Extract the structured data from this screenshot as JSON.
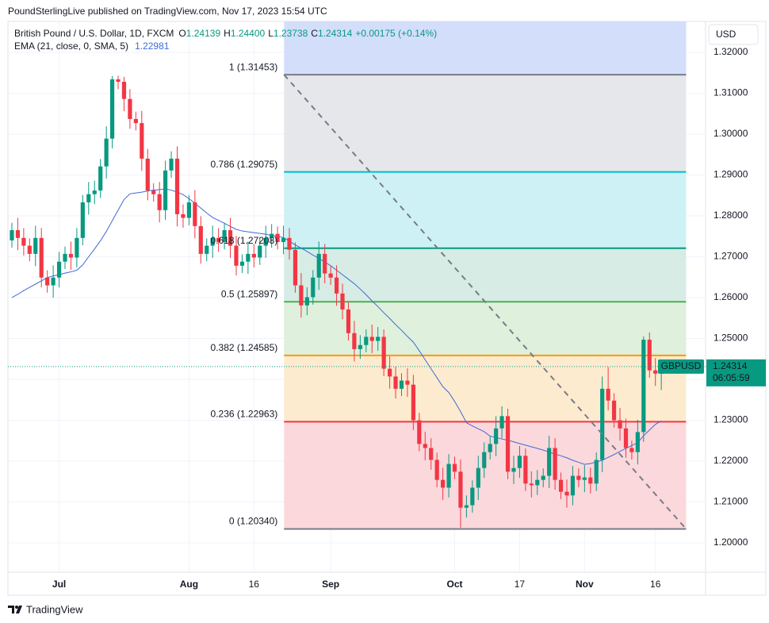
{
  "header": {
    "publisher": "PoundSterlingLive published on TradingView.com, Nov 17, 2023 15:54 UTC"
  },
  "footer": {
    "brand": "TradingView"
  },
  "chart_data": {
    "type": "candlestick",
    "symbol": "British Pound / U.S. Dollar, 1D, FXCM",
    "ohlc_names": [
      "O",
      "H",
      "L",
      "C"
    ],
    "ohlc_labels": [
      "1.24139",
      "1.24400",
      "1.23738",
      "1.24314"
    ],
    "change_label": "+0.00175 (+0.14%)",
    "currency": "USD",
    "ticker": "GBPUSD",
    "countdown": "06:05:59",
    "up_color": "#089981",
    "down_color": "#f23645",
    "open": [
      1.274,
      1.2765,
      1.2746,
      1.2727,
      1.2707,
      1.2746,
      1.2649,
      1.263,
      1.2649,
      1.2688,
      1.2707,
      1.2698,
      1.2746,
      1.2833,
      1.2853,
      1.2862,
      1.2921,
      1.2989,
      1.3134,
      1.3128,
      1.3086,
      1.3037,
      1.3027,
      1.294,
      1.2862,
      1.2853,
      1.2814,
      1.2911,
      1.294,
      1.2804,
      1.2795,
      1.2833,
      1.2775,
      1.2707,
      1.2727,
      1.2746,
      1.2736,
      1.2765,
      1.2727,
      1.2678,
      1.2688,
      1.2707,
      1.2698,
      1.2727,
      1.2746,
      1.2756,
      1.2736,
      1.2746,
      1.2717,
      1.263,
      1.2581,
      1.2601,
      1.2649,
      1.2707,
      1.2659,
      1.2649,
      1.261,
      1.2571,
      1.2513,
      1.2474,
      1.2484,
      1.2504,
      1.2494,
      1.2504,
      1.2426,
      1.2407,
      1.2377,
      1.2397,
      1.2387,
      1.23,
      1.2242,
      1.2232,
      1.2203,
      1.2154,
      1.2135,
      1.2193,
      1.2174,
      1.2086,
      1.2092,
      1.2135,
      1.2183,
      1.2222,
      1.2242,
      1.228,
      1.231,
      1.2174,
      1.2183,
      1.2213,
      1.2145,
      1.2141,
      1.2154,
      1.2164,
      1.2232,
      1.2154,
      1.2125,
      1.2116,
      1.2164,
      1.2154,
      1.216,
      1.2145,
      1.2203,
      1.2377,
      1.2348,
      1.23,
      1.228,
      1.2232,
      1.2222,
      1.2271,
      1.2497,
      1.2422,
      1.24139
    ],
    "high": [
      1.2783,
      1.2795,
      1.277,
      1.2745,
      1.2776,
      1.277,
      1.2667,
      1.2679,
      1.2712,
      1.2725,
      1.2737,
      1.277,
      1.2851,
      1.2883,
      1.2886,
      1.2939,
      1.3019,
      1.3142,
      1.3143,
      1.314,
      1.311,
      1.3055,
      1.3057,
      1.2964,
      1.288,
      1.2883,
      1.2935,
      1.2958,
      1.297,
      1.2828,
      1.2851,
      1.2863,
      1.2799,
      1.2745,
      1.2776,
      1.277,
      1.2783,
      1.2795,
      1.2751,
      1.2706,
      1.2737,
      1.2731,
      1.2745,
      1.2776,
      1.278,
      1.2774,
      1.2776,
      1.277,
      1.2735,
      1.266,
      1.2625,
      1.2667,
      1.2737,
      1.2731,
      1.2677,
      1.2679,
      1.2634,
      1.2589,
      1.2543,
      1.2508,
      1.2522,
      1.2534,
      1.2528,
      1.2522,
      1.2456,
      1.2431,
      1.2415,
      1.2427,
      1.2411,
      1.2318,
      1.2272,
      1.2256,
      1.2221,
      1.2184,
      1.2217,
      1.2211,
      1.2204,
      1.2116,
      1.2153,
      1.2213,
      1.2246,
      1.226,
      1.231,
      1.2334,
      1.2328,
      1.2213,
      1.2237,
      1.2231,
      1.2175,
      1.2178,
      1.2182,
      1.2262,
      1.2256,
      1.2172,
      1.2155,
      1.2188,
      1.2182,
      1.219,
      1.2184,
      1.2221,
      1.2407,
      1.243,
      1.2366,
      1.233,
      1.2304,
      1.225,
      1.2301,
      1.2505,
      1.2515,
      1.2452,
      1.244
    ],
    "low": [
      1.2722,
      1.2716,
      1.2703,
      1.2689,
      1.2677,
      1.2625,
      1.2612,
      1.26,
      1.2625,
      1.267,
      1.2668,
      1.2674,
      1.2728,
      1.2803,
      1.2829,
      1.2844,
      1.2891,
      1.2965,
      1.311,
      1.3056,
      1.3013,
      1.3009,
      1.291,
      1.2838,
      1.2835,
      1.2784,
      1.279,
      1.2893,
      1.2774,
      1.2771,
      1.2777,
      1.2745,
      1.2683,
      1.2689,
      1.2697,
      1.2712,
      1.2718,
      1.2697,
      1.2654,
      1.266,
      1.2658,
      1.2674,
      1.268,
      1.2697,
      1.2722,
      1.2718,
      1.2706,
      1.2693,
      1.2612,
      1.2551,
      1.2557,
      1.2583,
      1.2619,
      1.2635,
      1.2631,
      1.258,
      1.2547,
      1.2495,
      1.2444,
      1.245,
      1.2466,
      1.2464,
      1.247,
      1.2408,
      1.2377,
      1.2353,
      1.2359,
      1.2357,
      1.2276,
      1.2224,
      1.2202,
      1.2179,
      1.2136,
      1.2105,
      1.2111,
      1.2156,
      1.2037,
      1.2062,
      1.2074,
      1.2105,
      1.2159,
      1.2204,
      1.2212,
      1.2256,
      1.2156,
      1.2144,
      1.2159,
      1.2127,
      1.2111,
      1.2117,
      1.2136,
      1.2134,
      1.213,
      1.2107,
      1.2086,
      1.2092,
      1.2136,
      1.2124,
      1.2121,
      1.2127,
      1.2173,
      1.2324,
      1.2282,
      1.225,
      1.2208,
      1.2204,
      1.2192,
      1.2247,
      1.2404,
      1.2384,
      1.23738
    ],
    "close": [
      1.2765,
      1.2746,
      1.2727,
      1.2707,
      1.2746,
      1.2649,
      1.263,
      1.2649,
      1.2688,
      1.2707,
      1.2698,
      1.2746,
      1.2833,
      1.2853,
      1.2862,
      1.2921,
      1.2989,
      1.3134,
      1.3128,
      1.3086,
      1.3037,
      1.3027,
      1.294,
      1.2862,
      1.2853,
      1.2814,
      1.2911,
      1.294,
      1.2804,
      1.2795,
      1.2833,
      1.2775,
      1.2707,
      1.2727,
      1.2746,
      1.2736,
      1.2765,
      1.2727,
      1.2678,
      1.2688,
      1.2707,
      1.2698,
      1.2727,
      1.2746,
      1.2756,
      1.2736,
      1.2746,
      1.2717,
      1.263,
      1.2581,
      1.2601,
      1.2649,
      1.2707,
      1.2659,
      1.2649,
      1.261,
      1.2571,
      1.2513,
      1.2474,
      1.2484,
      1.2504,
      1.2494,
      1.2504,
      1.2426,
      1.2407,
      1.2377,
      1.2397,
      1.2387,
      1.23,
      1.2242,
      1.2232,
      1.2203,
      1.2154,
      1.2135,
      1.2193,
      1.2174,
      1.2086,
      1.2092,
      1.2135,
      1.2183,
      1.2222,
      1.2242,
      1.228,
      1.231,
      1.2174,
      1.2183,
      1.2213,
      1.2145,
      1.2141,
      1.2154,
      1.2164,
      1.2232,
      1.2154,
      1.2125,
      1.2116,
      1.2164,
      1.2154,
      1.216,
      1.2145,
      1.2203,
      1.2377,
      1.2348,
      1.23,
      1.228,
      1.2232,
      1.2222,
      1.2271,
      1.2497,
      1.2422,
      1.2414,
      1.24314
    ],
    "ema": {
      "name": "EMA (21, close, 0, SMA, 5)",
      "color": "#3f6ad8",
      "values": [
        1.26,
        1.2608,
        1.2617,
        1.2625,
        1.2633,
        1.2641,
        1.2649,
        1.2653,
        1.2656,
        1.266,
        1.2663,
        1.2667,
        1.268,
        1.27,
        1.2719,
        1.2739,
        1.2762,
        1.2788,
        1.2814,
        1.284,
        1.2854,
        1.2856,
        1.2858,
        1.2861,
        1.2863,
        1.2864,
        1.2866,
        1.2863,
        1.2858,
        1.2852,
        1.2842,
        1.2831,
        1.2819,
        1.2807,
        1.2796,
        1.2789,
        1.2782,
        1.2774,
        1.2767,
        1.2763,
        1.2761,
        1.2759,
        1.2757,
        1.2755,
        1.2752,
        1.275,
        1.2747,
        1.2738,
        1.2729,
        1.2721,
        1.2713,
        1.2704,
        1.2696,
        1.2687,
        1.2678,
        1.2667,
        1.2656,
        1.2645,
        1.2634,
        1.2621,
        1.2607,
        1.2592,
        1.2578,
        1.2563,
        1.2549,
        1.2534,
        1.252,
        1.2505,
        1.2491,
        1.247,
        1.2448,
        1.2426,
        1.2404,
        1.2382,
        1.2368,
        1.2346,
        1.2321,
        1.2294,
        1.2286,
        1.2279,
        1.2272,
        1.2261,
        1.2258,
        1.2254,
        1.2251,
        1.2247,
        1.2243,
        1.2239,
        1.2235,
        1.2231,
        1.2227,
        1.2222,
        1.2217,
        1.2213,
        1.2208,
        1.2202,
        1.2197,
        1.2192,
        1.2194,
        1.2198,
        1.2202,
        1.2209,
        1.2216,
        1.2224,
        1.2231,
        1.2238,
        1.2245,
        1.2262,
        1.2276,
        1.229,
        1.22981
      ]
    },
    "fib": {
      "x": [
        46.1,
        114.2
      ],
      "levels": [
        1,
        0.786,
        0.618,
        0.5,
        0.382,
        0.236,
        0
      ],
      "prices": [
        1.31453,
        1.29075,
        1.27208,
        1.25897,
        1.24585,
        1.22963,
        1.2034
      ],
      "labels": [
        "1 (1.31453)",
        "0.786 (1.29075)",
        "0.618 (1.27208)",
        "0.5 (1.25897)",
        "0.382 (1.24585)",
        "0.236 (1.22963)",
        "0 (1.20340)"
      ],
      "colors": [
        "#787b86",
        "#00bcd4",
        "#089981",
        "#4caf50",
        "#ff9800",
        "#f23645",
        "#787b86"
      ],
      "fills": [
        "#d3defb",
        "#e6e7ea",
        "#cdf1f4",
        "#d6ece4",
        "#dff0dc",
        "#fdebcf",
        "#fbd8db"
      ]
    },
    "trend": {
      "x": [
        46.1,
        114.2
      ],
      "y": [
        1.31453,
        1.2034
      ],
      "color": "#787b86"
    },
    "xlim": [
      -0.67,
      117.5
    ],
    "xticks": [
      {
        "value": 8,
        "label": "Jul"
      },
      {
        "value": 30,
        "label": "Aug"
      },
      {
        "value": 41,
        "label": "16"
      },
      {
        "value": 54,
        "label": "Sep"
      },
      {
        "value": 75,
        "label": "Oct"
      },
      {
        "value": 86,
        "label": "17"
      },
      {
        "value": 97,
        "label": "Nov"
      },
      {
        "value": 109,
        "label": "16"
      }
    ],
    "ylim": [
      1.19301,
      1.32757
    ],
    "yticks": [
      {
        "value": 1.2,
        "label": "1.20000"
      },
      {
        "value": 1.21,
        "label": "1.21000"
      },
      {
        "value": 1.22,
        "label": "1.22000"
      },
      {
        "value": 1.23,
        "label": "1.23000"
      },
      {
        "value": 1.24,
        "label": "1.24000"
      },
      {
        "value": 1.25,
        "label": "1.25000"
      },
      {
        "value": 1.26,
        "label": "1.26000"
      },
      {
        "value": 1.27,
        "label": "1.27000"
      },
      {
        "value": 1.28,
        "label": "1.28000"
      },
      {
        "value": 1.29,
        "label": "1.29000"
      },
      {
        "value": 1.3,
        "label": "1.30000"
      },
      {
        "value": 1.31,
        "label": "1.31000"
      },
      {
        "value": 1.32,
        "label": "1.32000"
      }
    ],
    "grid": true
  }
}
